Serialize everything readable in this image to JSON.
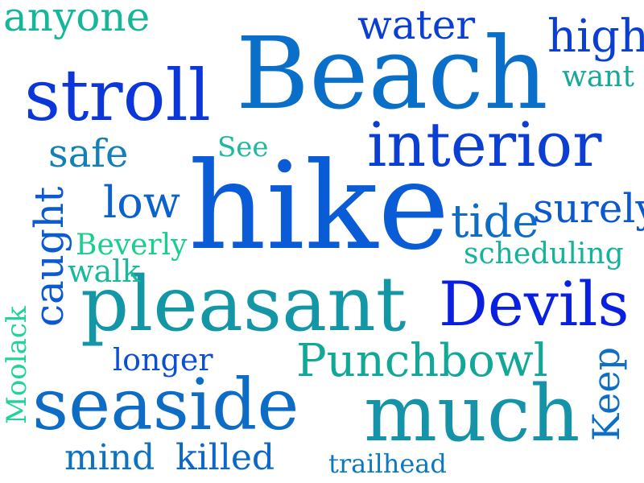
{
  "words": [
    {
      "text": "Beach",
      "color": "#0a6fc9"
    },
    {
      "text": "hike",
      "color": "#0a5bd6"
    },
    {
      "text": "much",
      "color": "#1593a8"
    },
    {
      "text": "pleasant",
      "color": "#1396a5"
    },
    {
      "text": "seaside",
      "color": "#0d6cc6"
    },
    {
      "text": "stroll",
      "color": "#0b36d9"
    },
    {
      "text": "interior",
      "color": "#0b3fd4"
    },
    {
      "text": "Devils",
      "color": "#0a20e0"
    },
    {
      "text": "Punchbowl",
      "color": "#12a898"
    },
    {
      "text": "water",
      "color": "#0b3fd4"
    },
    {
      "text": "high",
      "color": "#0b3fd4"
    },
    {
      "text": "anyone",
      "color": "#16b69b"
    },
    {
      "text": "want",
      "color": "#16a898"
    },
    {
      "text": "safe",
      "color": "#1580b8"
    },
    {
      "text": "See",
      "color": "#1cba9c"
    },
    {
      "text": "low",
      "color": "#0c62cc"
    },
    {
      "text": "tide",
      "color": "#0d6cc6"
    },
    {
      "text": "surely",
      "color": "#0c58d0"
    },
    {
      "text": "scheduling",
      "color": "#15b39a"
    },
    {
      "text": "Beverly",
      "color": "#19cf8e"
    },
    {
      "text": "walk",
      "color": "#1ab99e"
    },
    {
      "text": "caught",
      "color": "#0b5ad0"
    },
    {
      "text": "longer",
      "color": "#0b4fd2"
    },
    {
      "text": "Keep",
      "color": "#0f6ec6"
    },
    {
      "text": "Moolack",
      "color": "#1fd39a"
    },
    {
      "text": "mind",
      "color": "#0d71c4"
    },
    {
      "text": "killed",
      "color": "#0c67c8"
    },
    {
      "text": "trailhead",
      "color": "#0c78c2"
    }
  ]
}
